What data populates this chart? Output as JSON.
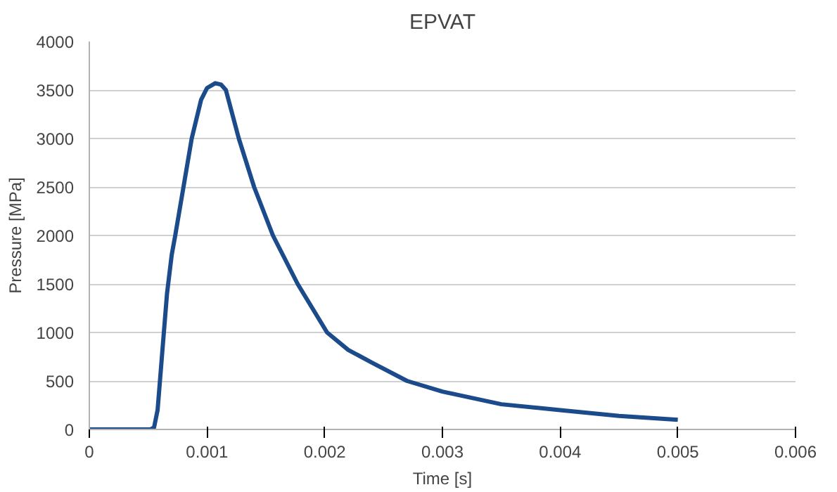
{
  "chart_data": {
    "type": "line",
    "title": "EPVAT",
    "xlabel": "Time [s]",
    "ylabel": "Pressure [MPa]",
    "x": [
      0,
      0.0003,
      0.00052,
      0.00055,
      0.00058,
      0.00062,
      0.00066,
      0.0007,
      0.00073,
      0.0008,
      0.00087,
      0.00095,
      0.001,
      0.00107,
      0.00112,
      0.00116,
      0.00127,
      0.0014,
      0.00156,
      0.00177,
      0.00202,
      0.0022,
      0.0024,
      0.0027,
      0.003,
      0.0035,
      0.004,
      0.0045,
      0.005
    ],
    "series": [
      {
        "color": "#1b4b8a",
        "values": [
          0,
          0,
          0,
          20,
          200,
          800,
          1400,
          1800,
          2000,
          2500,
          3000,
          3400,
          3520,
          3570,
          3555,
          3500,
          3000,
          2500,
          2000,
          1500,
          1000,
          820,
          690,
          500,
          390,
          260,
          200,
          140,
          100
        ]
      }
    ],
    "xlim": [
      0,
      0.006
    ],
    "xticks": [
      0,
      0.001,
      0.002,
      0.003,
      0.004,
      0.005,
      0.006
    ],
    "ylim": [
      0,
      4000
    ],
    "yticks": [
      0,
      500,
      1000,
      1500,
      2000,
      2500,
      3000,
      3500,
      4000
    ],
    "grid": "y",
    "marker": "none",
    "line_style": "solid"
  }
}
